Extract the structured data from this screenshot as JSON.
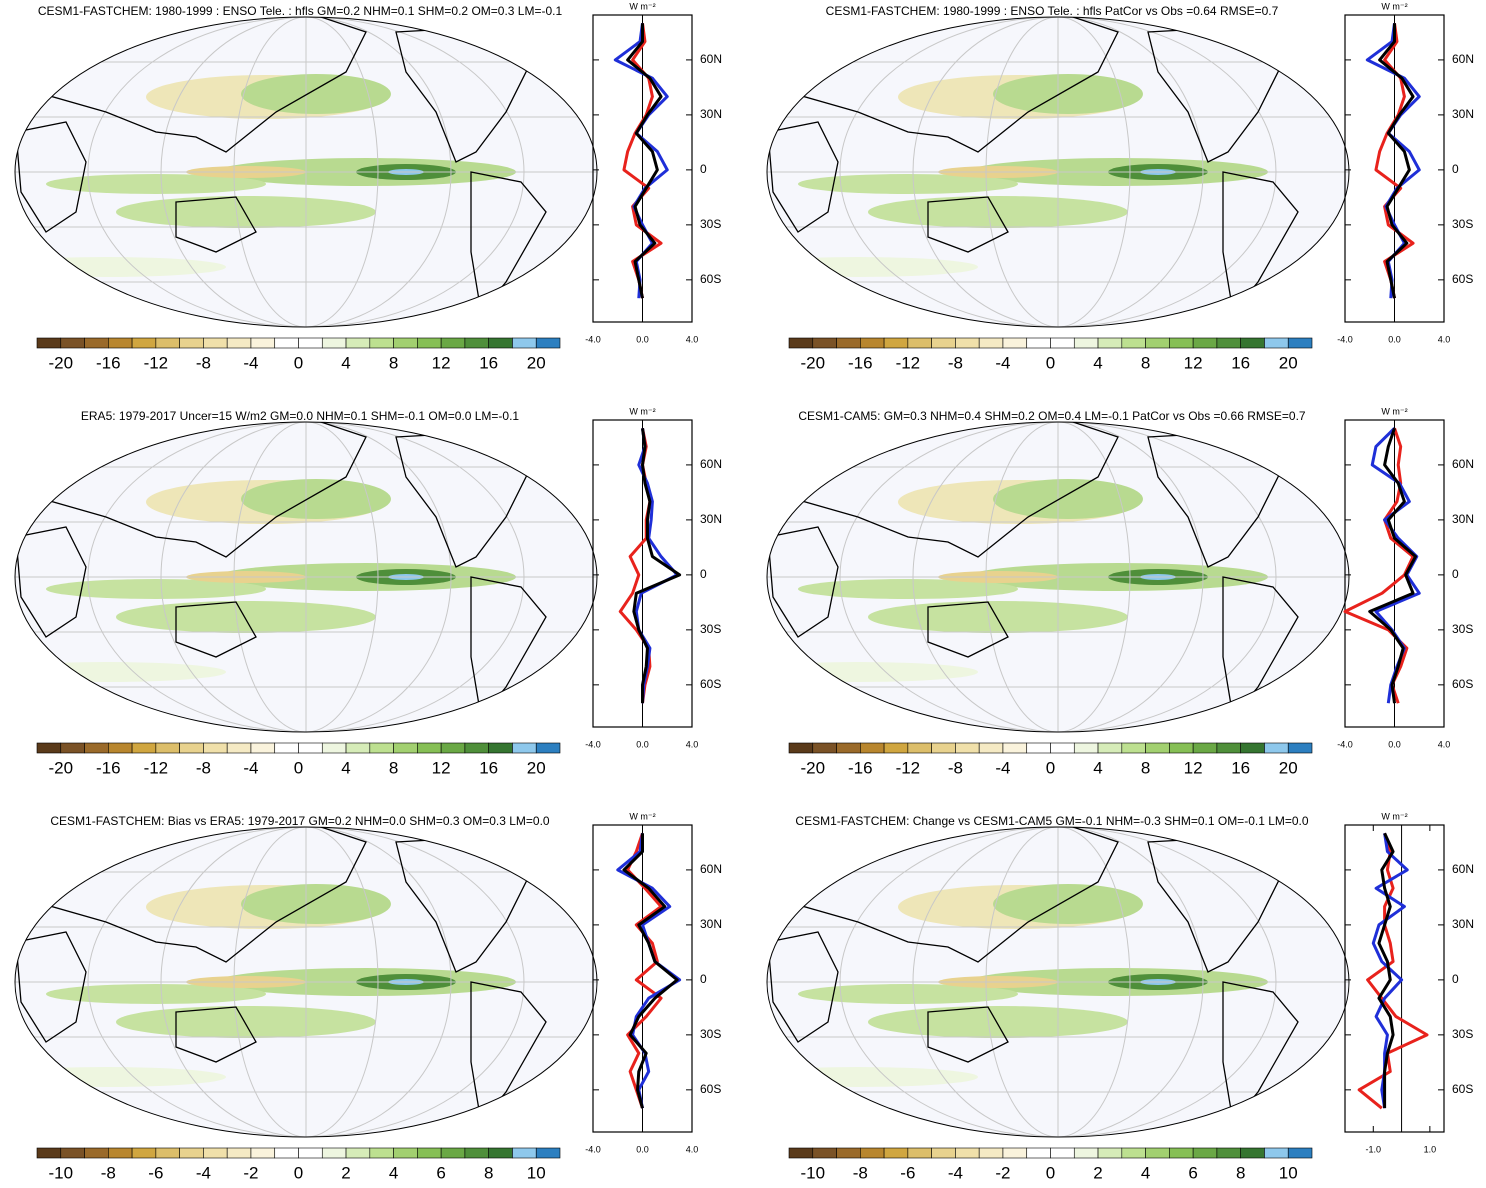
{
  "chart_data": [
    {
      "type": "line",
      "title": "CESM1-FASTCHEM: 1980-1999 : ENSO Tele. : hfls GM=0.2 NHM=0.1 SHM=0.2 OM=0.3 LM=-0.1",
      "xlabel": "W m⁻²",
      "lat": [
        -70,
        -60,
        -50,
        -40,
        -30,
        -20,
        -10,
        0,
        10,
        20,
        30,
        40,
        50,
        60,
        70,
        80
      ],
      "xlim": [
        -4,
        4
      ],
      "xticks": [
        {
          "value": -4,
          "label": "-4.0"
        },
        {
          "value": 0,
          "label": "0.0"
        },
        {
          "value": 4,
          "label": "4.0"
        }
      ],
      "ylim": [
        -83,
        84.5
      ],
      "yticks": [
        {
          "value": 60,
          "label": "60N"
        },
        {
          "value": 30,
          "label": "30N"
        },
        0,
        {
          "value": -30,
          "label": "30S"
        },
        {
          "value": -60,
          "label": "60S"
        }
      ],
      "series": [
        {
          "color": "#e8221c",
          "values": [
            0,
            -0.3,
            -0.8,
            1.5,
            -0.5,
            -0.8,
            0.5,
            -1.5,
            -1.2,
            -0.6,
            0.3,
            0.8,
            0.5,
            -0.8,
            0.2,
            0
          ]
        },
        {
          "color": "#1f2fd8",
          "values": [
            -0.3,
            -0.2,
            -0.5,
            0.8,
            0,
            -0.7,
            0.2,
            2.0,
            1.2,
            -0.5,
            0.5,
            2.0,
            0.8,
            -2.2,
            -0.2,
            0
          ]
        },
        {
          "color": "#000000",
          "values": [
            0,
            -0.3,
            -0.6,
            1.0,
            -0.2,
            -0.6,
            0.3,
            1.2,
            0.8,
            -0.5,
            0.4,
            1.5,
            0.6,
            -1.2,
            0,
            0
          ]
        }
      ],
      "colorbar": {
        "lim": [
          -22,
          22
        ],
        "ticks": [
          -20,
          -16,
          -12,
          -8,
          -4,
          0,
          4,
          8,
          12,
          16,
          20
        ],
        "colors": [
          "#5a3a1a",
          "#7a5226",
          "#9a6a2a",
          "#b8862e",
          "#d0a640",
          "#dcbe6a",
          "#e8d28e",
          "#f0e0aa",
          "#f5eac4",
          "#faf3dc",
          "#ffffff",
          "#ffffff",
          "#eef6e0",
          "#d6ecb8",
          "#bde090",
          "#a2d070",
          "#86bf55",
          "#6aa845",
          "#4f8f3a",
          "#357530",
          "#8ec8ec",
          "#2c7fc0"
        ]
      }
    },
    {
      "type": "line",
      "title": "CESM1-FASTCHEM: 1980-1999 : ENSO Tele. : hfls PatCor vs Obs =0.64 RMSE=0.7",
      "xlabel": "W m⁻²",
      "lat": [
        -70,
        -60,
        -50,
        -40,
        -30,
        -20,
        -10,
        0,
        10,
        20,
        30,
        40,
        50,
        60,
        70,
        80
      ],
      "xlim": [
        -4,
        4
      ],
      "xticks": [
        {
          "value": -4,
          "label": "-4.0"
        },
        {
          "value": 0,
          "label": "0.0"
        },
        {
          "value": 4,
          "label": "4.0"
        }
      ],
      "ylim": [
        -83,
        84.5
      ],
      "yticks": [
        {
          "value": 60,
          "label": "60N"
        },
        {
          "value": 30,
          "label": "30N"
        },
        0,
        {
          "value": -30,
          "label": "30S"
        },
        {
          "value": -60,
          "label": "60S"
        }
      ],
      "series": [
        {
          "color": "#e8221c",
          "values": [
            0,
            -0.3,
            -0.8,
            1.5,
            -0.5,
            -0.8,
            0.5,
            -1.5,
            -1.2,
            -0.6,
            0.3,
            0.8,
            0.5,
            -0.8,
            0.2,
            0
          ]
        },
        {
          "color": "#1f2fd8",
          "values": [
            -0.3,
            -0.2,
            -0.5,
            0.8,
            0,
            -0.7,
            0.2,
            2.0,
            1.2,
            -0.5,
            0.5,
            2.0,
            0.8,
            -2.2,
            -0.2,
            0
          ]
        },
        {
          "color": "#000000",
          "values": [
            0,
            -0.3,
            -0.6,
            1.0,
            -0.2,
            -0.6,
            0.3,
            1.2,
            0.8,
            -0.5,
            0.4,
            1.5,
            0.6,
            -1.2,
            0,
            0
          ]
        }
      ],
      "colorbar": {
        "lim": [
          -22,
          22
        ],
        "ticks": [
          -20,
          -16,
          -12,
          -8,
          -4,
          0,
          4,
          8,
          12,
          16,
          20
        ],
        "colors": [
          "#5a3a1a",
          "#7a5226",
          "#9a6a2a",
          "#b8862e",
          "#d0a640",
          "#dcbe6a",
          "#e8d28e",
          "#f0e0aa",
          "#f5eac4",
          "#faf3dc",
          "#ffffff",
          "#ffffff",
          "#eef6e0",
          "#d6ecb8",
          "#bde090",
          "#a2d070",
          "#86bf55",
          "#6aa845",
          "#4f8f3a",
          "#357530",
          "#8ec8ec",
          "#2c7fc0"
        ]
      }
    },
    {
      "type": "line",
      "title": "ERA5: 1979-2017 Uncer=15 W/m2 GM=0.0 NHM=0.1 SHM=-0.1 OM=0.0 LM=-0.1",
      "xlabel": "W m⁻²",
      "lat": [
        -70,
        -60,
        -50,
        -40,
        -30,
        -20,
        -10,
        0,
        10,
        20,
        30,
        40,
        50,
        60,
        70,
        80
      ],
      "xlim": [
        -4,
        4
      ],
      "xticks": [
        {
          "value": -4,
          "label": "-4.0"
        },
        {
          "value": 0,
          "label": "0.0"
        },
        {
          "value": 4,
          "label": "4.0"
        }
      ],
      "ylim": [
        -83,
        84.5
      ],
      "yticks": [
        {
          "value": 60,
          "label": "60N"
        },
        {
          "value": 30,
          "label": "30N"
        },
        0,
        {
          "value": -30,
          "label": "30S"
        },
        {
          "value": -60,
          "label": "60S"
        }
      ],
      "series": [
        {
          "color": "#e8221c",
          "values": [
            0,
            0.2,
            0.6,
            0.5,
            -0.5,
            -1.8,
            -0.8,
            -0.3,
            -1.0,
            0.3,
            0.3,
            0.6,
            0.3,
            0,
            0.3,
            0
          ]
        },
        {
          "color": "#1f2fd8",
          "values": [
            0,
            0.1,
            0.4,
            0.6,
            -0.3,
            -0.5,
            -0.1,
            2.8,
            1.5,
            0.5,
            0.7,
            0.8,
            0.4,
            -0.3,
            0.2,
            0
          ]
        },
        {
          "color": "#000000",
          "values": [
            0,
            0,
            0.3,
            0.4,
            -0.3,
            -0.7,
            -0.5,
            3.0,
            0.8,
            0.4,
            0.4,
            0.6,
            0.2,
            0,
            0.2,
            0
          ]
        }
      ],
      "colorbar": {
        "lim": [
          -22,
          22
        ],
        "ticks": [
          -20,
          -16,
          -12,
          -8,
          -4,
          0,
          4,
          8,
          12,
          16,
          20
        ],
        "colors": [
          "#5a3a1a",
          "#7a5226",
          "#9a6a2a",
          "#b8862e",
          "#d0a640",
          "#dcbe6a",
          "#e8d28e",
          "#f0e0aa",
          "#f5eac4",
          "#faf3dc",
          "#ffffff",
          "#ffffff",
          "#eef6e0",
          "#d6ecb8",
          "#bde090",
          "#a2d070",
          "#86bf55",
          "#6aa845",
          "#4f8f3a",
          "#357530",
          "#8ec8ec",
          "#2c7fc0"
        ]
      }
    },
    {
      "type": "line",
      "title": "CESM1-CAM5: GM=0.3 NHM=0.4 SHM=0.2 OM=0.4 LM=-0.1 PatCor vs Obs =0.66 RMSE=0.7",
      "xlabel": "W m⁻²",
      "lat": [
        -70,
        -60,
        -50,
        -40,
        -30,
        -20,
        -10,
        0,
        10,
        20,
        30,
        40,
        50,
        60,
        70,
        80
      ],
      "xlim": [
        -4,
        4
      ],
      "xticks": [
        {
          "value": -4,
          "label": "-4.0"
        },
        {
          "value": 0,
          "label": "0.0"
        },
        {
          "value": 4,
          "label": "4.0"
        }
      ],
      "ylim": [
        -83,
        84.5
      ],
      "yticks": [
        {
          "value": 60,
          "label": "60N"
        },
        {
          "value": 30,
          "label": "30N"
        },
        0,
        {
          "value": -30,
          "label": "30S"
        },
        {
          "value": -60,
          "label": "60S"
        }
      ],
      "series": [
        {
          "color": "#e8221c",
          "values": [
            0.3,
            -0.2,
            0.5,
            1.0,
            -0.5,
            -4.0,
            -1.0,
            0.8,
            1.5,
            -0.3,
            -0.8,
            0.2,
            0.5,
            0.3,
            0.5,
            0
          ]
        },
        {
          "color": "#1f2fd8",
          "values": [
            -0.5,
            -0.3,
            0.2,
            0.8,
            -0.2,
            -1.5,
            2.0,
            1.0,
            1.8,
            0.3,
            -0.8,
            1.2,
            0.4,
            -1.8,
            -1.5,
            0
          ]
        },
        {
          "color": "#000000",
          "values": [
            0,
            -0.2,
            0.3,
            0.7,
            -0.3,
            -2.0,
            1.5,
            0.9,
            1.7,
            0,
            -0.5,
            0.8,
            0.3,
            -0.8,
            -0.5,
            0
          ]
        }
      ],
      "colorbar": {
        "lim": [
          -22,
          22
        ],
        "ticks": [
          -20,
          -16,
          -12,
          -8,
          -4,
          0,
          4,
          8,
          12,
          16,
          20
        ],
        "colors": [
          "#5a3a1a",
          "#7a5226",
          "#9a6a2a",
          "#b8862e",
          "#d0a640",
          "#dcbe6a",
          "#e8d28e",
          "#f0e0aa",
          "#f5eac4",
          "#faf3dc",
          "#ffffff",
          "#ffffff",
          "#eef6e0",
          "#d6ecb8",
          "#bde090",
          "#a2d070",
          "#86bf55",
          "#6aa845",
          "#4f8f3a",
          "#357530",
          "#8ec8ec",
          "#2c7fc0"
        ]
      }
    },
    {
      "type": "line",
      "title": "CESM1-FASTCHEM: Bias vs ERA5: 1979-2017 GM=0.2 NHM=0.0 SHM=0.3 OM=0.3 LM=0.0",
      "xlabel": "W m⁻²",
      "lat": [
        -70,
        -60,
        -50,
        -40,
        -30,
        -20,
        -10,
        0,
        10,
        20,
        30,
        40,
        50,
        60,
        70,
        80
      ],
      "xlim": [
        -4,
        4
      ],
      "xticks": [
        {
          "value": -4,
          "label": "-4.0"
        },
        {
          "value": 0,
          "label": "0.0"
        },
        {
          "value": 4,
          "label": "4.0"
        }
      ],
      "ylim": [
        -83,
        84.5
      ],
      "yticks": [
        {
          "value": 60,
          "label": "60N"
        },
        {
          "value": 30,
          "label": "30N"
        },
        0,
        {
          "value": -30,
          "label": "30S"
        },
        {
          "value": -60,
          "label": "60S"
        }
      ],
      "series": [
        {
          "color": "#e8221c",
          "values": [
            0,
            -0.5,
            -1.0,
            -0.3,
            -1.2,
            0.3,
            1.5,
            -0.5,
            1.2,
            0.8,
            -0.5,
            1.5,
            0.2,
            -1.2,
            -0.5,
            0
          ]
        },
        {
          "color": "#1f2fd8",
          "values": [
            0,
            -0.3,
            0.5,
            0.2,
            -0.8,
            -0.5,
            0.5,
            3.0,
            1.0,
            0.5,
            0,
            2.2,
            0.8,
            -2.0,
            -0.2,
            0
          ]
        },
        {
          "color": "#000000",
          "values": [
            0,
            -0.4,
            -0.3,
            0.3,
            -1.0,
            -0.3,
            1.0,
            2.8,
            1.0,
            0.5,
            -0.3,
            1.8,
            0.5,
            -1.5,
            0,
            0
          ]
        }
      ],
      "colorbar": {
        "lim": [
          -11,
          11
        ],
        "ticks": [
          -10,
          -8,
          -6,
          -4,
          -2,
          0,
          2,
          4,
          6,
          8,
          10
        ],
        "colors": [
          "#5a3a1a",
          "#7a5226",
          "#9a6a2a",
          "#b8862e",
          "#d0a640",
          "#dcbe6a",
          "#e8d28e",
          "#f0e0aa",
          "#f5eac4",
          "#faf3dc",
          "#ffffff",
          "#ffffff",
          "#eef6e0",
          "#d6ecb8",
          "#bde090",
          "#a2d070",
          "#86bf55",
          "#6aa845",
          "#4f8f3a",
          "#357530",
          "#8ec8ec",
          "#2c7fc0"
        ]
      }
    },
    {
      "type": "line",
      "title": "CESM1-FASTCHEM: Change vs CESM1-CAM5 GM=-0.1 NHM=-0.3 SHM=0.1 OM=-0.1 LM=0.0",
      "xlabel": "W m⁻²",
      "lat": [
        -70,
        -60,
        -50,
        -40,
        -30,
        -20,
        -10,
        0,
        10,
        20,
        30,
        40,
        50,
        60,
        70,
        80
      ],
      "xlim": [
        -2.0,
        1.5
      ],
      "xticks": [
        {
          "value": -1,
          "label": "-1.0"
        },
        {
          "value": 1,
          "label": "1.0"
        }
      ],
      "ylim": [
        -83,
        84.5
      ],
      "yticks": [
        {
          "value": 60,
          "label": "60N"
        },
        {
          "value": 30,
          "label": "30N"
        },
        0,
        {
          "value": -30,
          "label": "30S"
        },
        {
          "value": -60,
          "label": "60S"
        }
      ],
      "series": [
        {
          "color": "#e8221c",
          "values": [
            -0.7,
            -1.5,
            -0.4,
            -0.5,
            0.9,
            -0.2,
            -0.7,
            -1.2,
            -0.3,
            -0.4,
            -0.6,
            -0.6,
            -0.3,
            -0.5,
            -0.4,
            -0.6
          ]
        },
        {
          "color": "#1f2fd8",
          "values": [
            -0.6,
            -0.7,
            -0.6,
            -0.6,
            -0.5,
            -0.9,
            -0.6,
            0,
            -0.7,
            -1.0,
            -0.8,
            0.1,
            -0.9,
            0.2,
            -0.5,
            -0.6
          ]
        },
        {
          "color": "#000000",
          "values": [
            -0.6,
            -0.6,
            -0.6,
            -0.5,
            -0.3,
            -0.4,
            -0.8,
            -0.4,
            -0.5,
            -0.8,
            -0.6,
            -0.4,
            -0.6,
            -0.7,
            -0.3,
            -0.6
          ]
        }
      ],
      "colorbar": {
        "lim": [
          -11,
          11
        ],
        "ticks": [
          -10,
          -8,
          -6,
          -4,
          -2,
          0,
          2,
          4,
          6,
          8,
          10
        ],
        "colors": [
          "#5a3a1a",
          "#7a5226",
          "#9a6a2a",
          "#b8862e",
          "#d0a640",
          "#dcbe6a",
          "#e8d28e",
          "#f0e0aa",
          "#f5eac4",
          "#faf3dc",
          "#ffffff",
          "#ffffff",
          "#eef6e0",
          "#d6ecb8",
          "#bde090",
          "#a2d070",
          "#86bf55",
          "#6aa845",
          "#4f8f3a",
          "#357530",
          "#8ec8ec",
          "#2c7fc0"
        ]
      }
    }
  ]
}
